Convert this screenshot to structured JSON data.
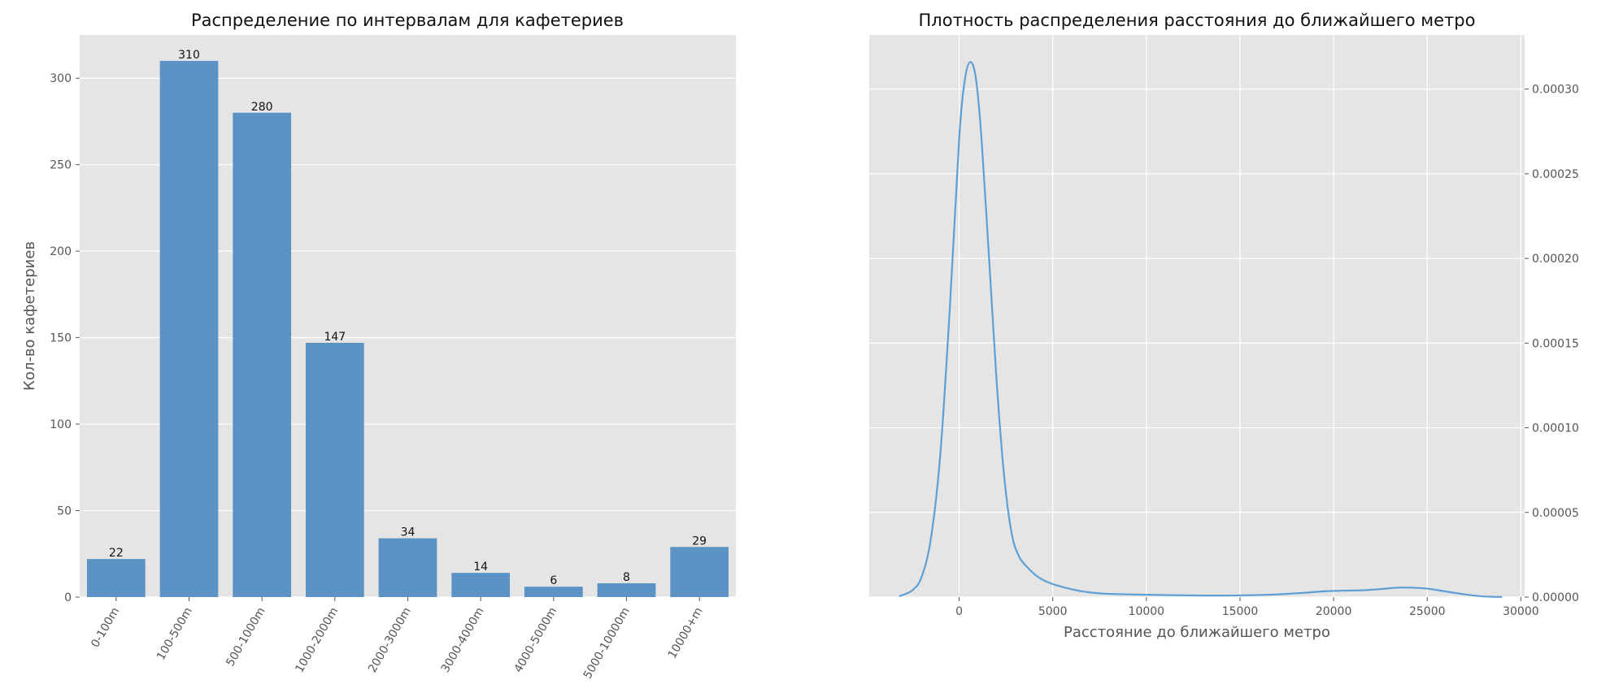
{
  "chart_data": [
    {
      "type": "bar",
      "title": "Распределение по интервалам для кафетериев",
      "xlabel": "",
      "ylabel": "Кол-во кафетериев",
      "categories": [
        "0-100m",
        "100-500m",
        "500-1000m",
        "1000-2000m",
        "2000-3000m",
        "3000-4000m",
        "4000-5000m",
        "5000-10000m",
        "10000+m"
      ],
      "values": [
        22,
        310,
        280,
        147,
        34,
        14,
        6,
        8,
        29
      ],
      "data_labels": [
        "22",
        "310",
        "280",
        "147",
        "34",
        "14",
        "6",
        "8",
        "29"
      ],
      "ylim": [
        0,
        325
      ],
      "yticks": [
        0,
        50,
        100,
        150,
        200,
        250,
        300
      ],
      "ytick_labels": [
        "0",
        "50",
        "100",
        "150",
        "200",
        "250",
        "300"
      ],
      "bar_color": "#5b93c4",
      "background": "#e5e5e5",
      "grid": true
    },
    {
      "type": "line",
      "title": "Плотность распределения расстояния до ближайшего метро",
      "xlabel": "Расстояние до ближайшего метро",
      "ylabel": "",
      "xlim": [
        -4800,
        30200
      ],
      "ylim": [
        0,
        0.000332
      ],
      "xticks": [
        0,
        5000,
        10000,
        15000,
        20000,
        25000,
        30000
      ],
      "xtick_labels": [
        "0",
        "5000",
        "10000",
        "15000",
        "20000",
        "25000",
        "30000"
      ],
      "yticks": [
        0,
        5e-05,
        0.0001,
        0.00015,
        0.0002,
        0.00025,
        0.0003
      ],
      "ytick_labels": [
        "0.00000",
        "0.00005",
        "0.00010",
        "0.00015",
        "0.00020",
        "0.00025",
        "0.00030"
      ],
      "y_axis_position": "right",
      "line_color": "#5b9fd6",
      "background": "#e5e5e5",
      "grid": true,
      "series": [
        {
          "x": [
            -3200,
            -2500,
            -2000,
            -1500,
            -1000,
            -500,
            0,
            300,
            600,
            900,
            1200,
            1600,
            2000,
            2400,
            2800,
            3200,
            3700,
            4200,
            4800,
            5500,
            6500,
            7500,
            9000,
            11000,
            13000,
            15000,
            17000,
            18500,
            19500,
            20500,
            21500,
            22500,
            23300,
            24000,
            25000,
            26000,
            27000,
            28000,
            29000
          ],
          "y": [
            5e-07,
            4e-06,
            1.2e-05,
            3.5e-05,
            8.5e-05,
            0.00017,
            0.00027,
            0.000305,
            0.000316,
            0.000306,
            0.00027,
            0.0002,
            0.000128,
            7.2e-05,
            3.8e-05,
            2.4e-05,
            1.7e-05,
            1.2e-05,
            8.5e-06,
            6e-06,
            3.5e-06,
            2.2e-06,
            1.6e-06,
            1.2e-06,
            9e-07,
            1e-06,
            1.6e-06,
            2.6e-06,
            3.4e-06,
            3.8e-06,
            4e-06,
            4.7e-06,
            5.5e-06,
            5.6e-06,
            5e-06,
            3.3e-06,
            1.6e-06,
            4e-07,
            1e-07
          ]
        }
      ]
    }
  ]
}
